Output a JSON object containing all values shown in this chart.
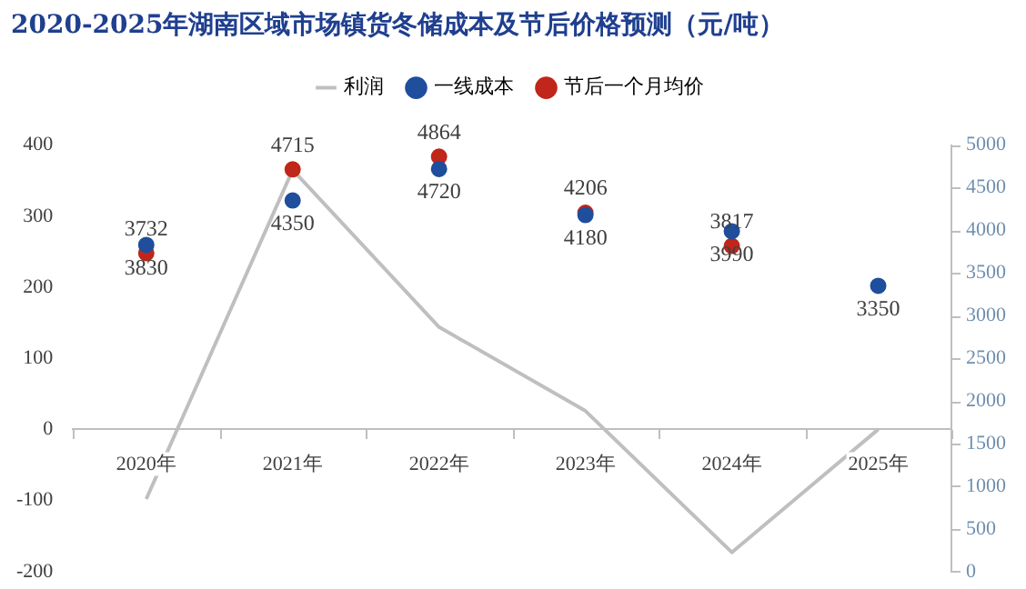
{
  "chart_data": {
    "type": "line",
    "title": "2020-2025年湖南区域市场镇货冬储成本及节后价格预测（元/吨）",
    "categories": [
      "2020年",
      "2021年",
      "2022年",
      "2023年",
      "2024年",
      "2025年"
    ],
    "series": [
      {
        "name": "利润",
        "color": "#bfbfbf",
        "marker": "none",
        "values": [
          -98,
          365,
          144,
          26,
          -173,
          0
        ]
      },
      {
        "name": "一线成本",
        "type": "scatter",
        "axis": "y2",
        "marker": "circle",
        "color": "#1f4e9c",
        "x": [
          "2020年",
          "2021年",
          "2022年",
          "2023年",
          "2024年",
          "2025年"
        ],
        "values": [
          3830,
          4350,
          4720,
          4180,
          3990,
          3350
        ],
        "value_labels": [
          "3830",
          "4350",
          "4720",
          "4180",
          "3990",
          "3350"
        ]
      },
      {
        "name": "节后一个月均价",
        "type": "scatter",
        "axis": "y2",
        "marker": "circle",
        "color": "#c0261a",
        "x": [
          "2020年",
          "2021年",
          "2022年",
          "2023年",
          "2024年"
        ],
        "values": [
          3732,
          4715,
          4864,
          4206,
          3817
        ],
        "value_labels": [
          "3732",
          "4715",
          "4864",
          "4206",
          "3817"
        ]
      }
    ],
    "ylim": [
      -200,
      400
    ],
    "yticks": [
      -200,
      -100,
      0,
      100,
      200,
      300,
      400
    ],
    "y2lim": [
      0,
      5000
    ],
    "y2ticks": [
      0,
      500,
      1000,
      1500,
      2000,
      2500,
      3000,
      3500,
      4000,
      4500,
      5000
    ],
    "legend": "top",
    "grid": false
  }
}
